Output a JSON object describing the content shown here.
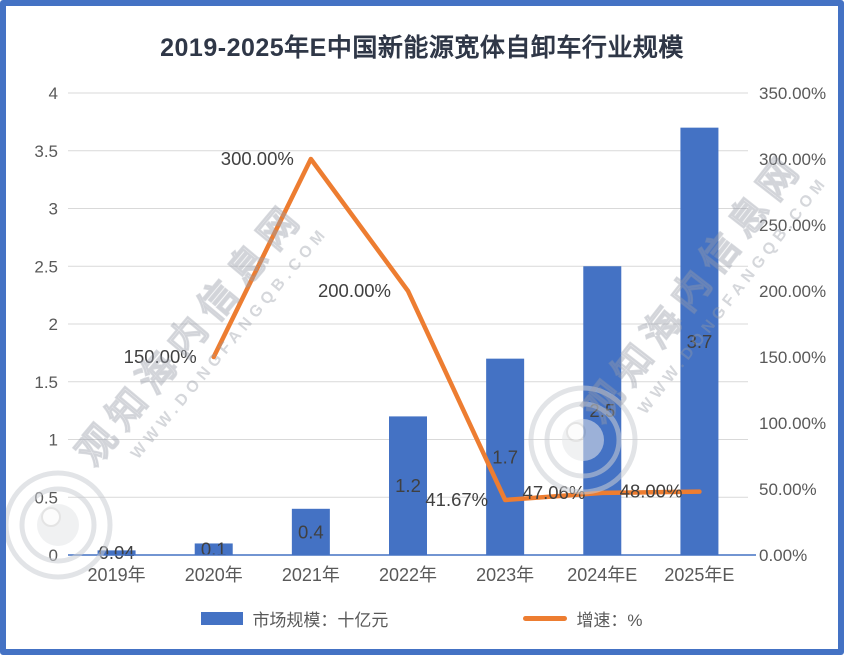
{
  "title": "2019-2025年E中国新能源宽体自卸车行业规模",
  "colors": {
    "bar": "#4472C4",
    "line": "#ED7D31",
    "frame": "#4472C4",
    "axis_line": "#4472C4",
    "grid": "#D9D9D9",
    "axis_text": "#595959",
    "label_text": "#404040",
    "title_text": "#2F3747",
    "watermark": "#C9CCD2"
  },
  "legend": [
    {
      "label": "市场规模：十亿元",
      "swatch": "bar-swatch"
    },
    {
      "label": "增速：%",
      "swatch": "line-swatch"
    }
  ],
  "watermark": {
    "logo_text": "观知海内信息网",
    "url_text": "WWW.DONGFANGQB.COM"
  },
  "chart_data": {
    "type": "combo-bar-line",
    "title": "2019-2025年E中国新能源宽体自卸车行业规模",
    "categories": [
      "2019年",
      "2020年",
      "2021年",
      "2022年",
      "2023年",
      "2024年E",
      "2025年E"
    ],
    "series": [
      {
        "name": "市场规模：十亿元",
        "type": "bar",
        "axis": "left",
        "values": [
          0.04,
          0.1,
          0.4,
          1.2,
          1.7,
          2.5,
          3.7
        ],
        "labels": [
          "0.04",
          "0.1",
          "0.4",
          "1.2",
          "1.7",
          "2.5",
          "3.7"
        ]
      },
      {
        "name": "增速：%",
        "type": "line",
        "axis": "right",
        "values": [
          null,
          150,
          300,
          200,
          41.67,
          47.06,
          48
        ],
        "labels": [
          null,
          "150.00%",
          "300.00%",
          "200.00%",
          "41.67%",
          "47.06%",
          "48.00%"
        ]
      }
    ],
    "left_axis": {
      "min": 0,
      "max": 4,
      "step": 0.5,
      "ticks": [
        "0",
        "0.5",
        "1",
        "1.5",
        "2",
        "2.5",
        "3",
        "3.5",
        "4"
      ]
    },
    "right_axis": {
      "min": 0,
      "max": 350,
      "step": 50,
      "ticks": [
        "0.00%",
        "50.00%",
        "100.00%",
        "150.00%",
        "200.00%",
        "250.00%",
        "300.00%",
        "350.00%"
      ]
    },
    "grid": true,
    "legend_position": "bottom"
  }
}
